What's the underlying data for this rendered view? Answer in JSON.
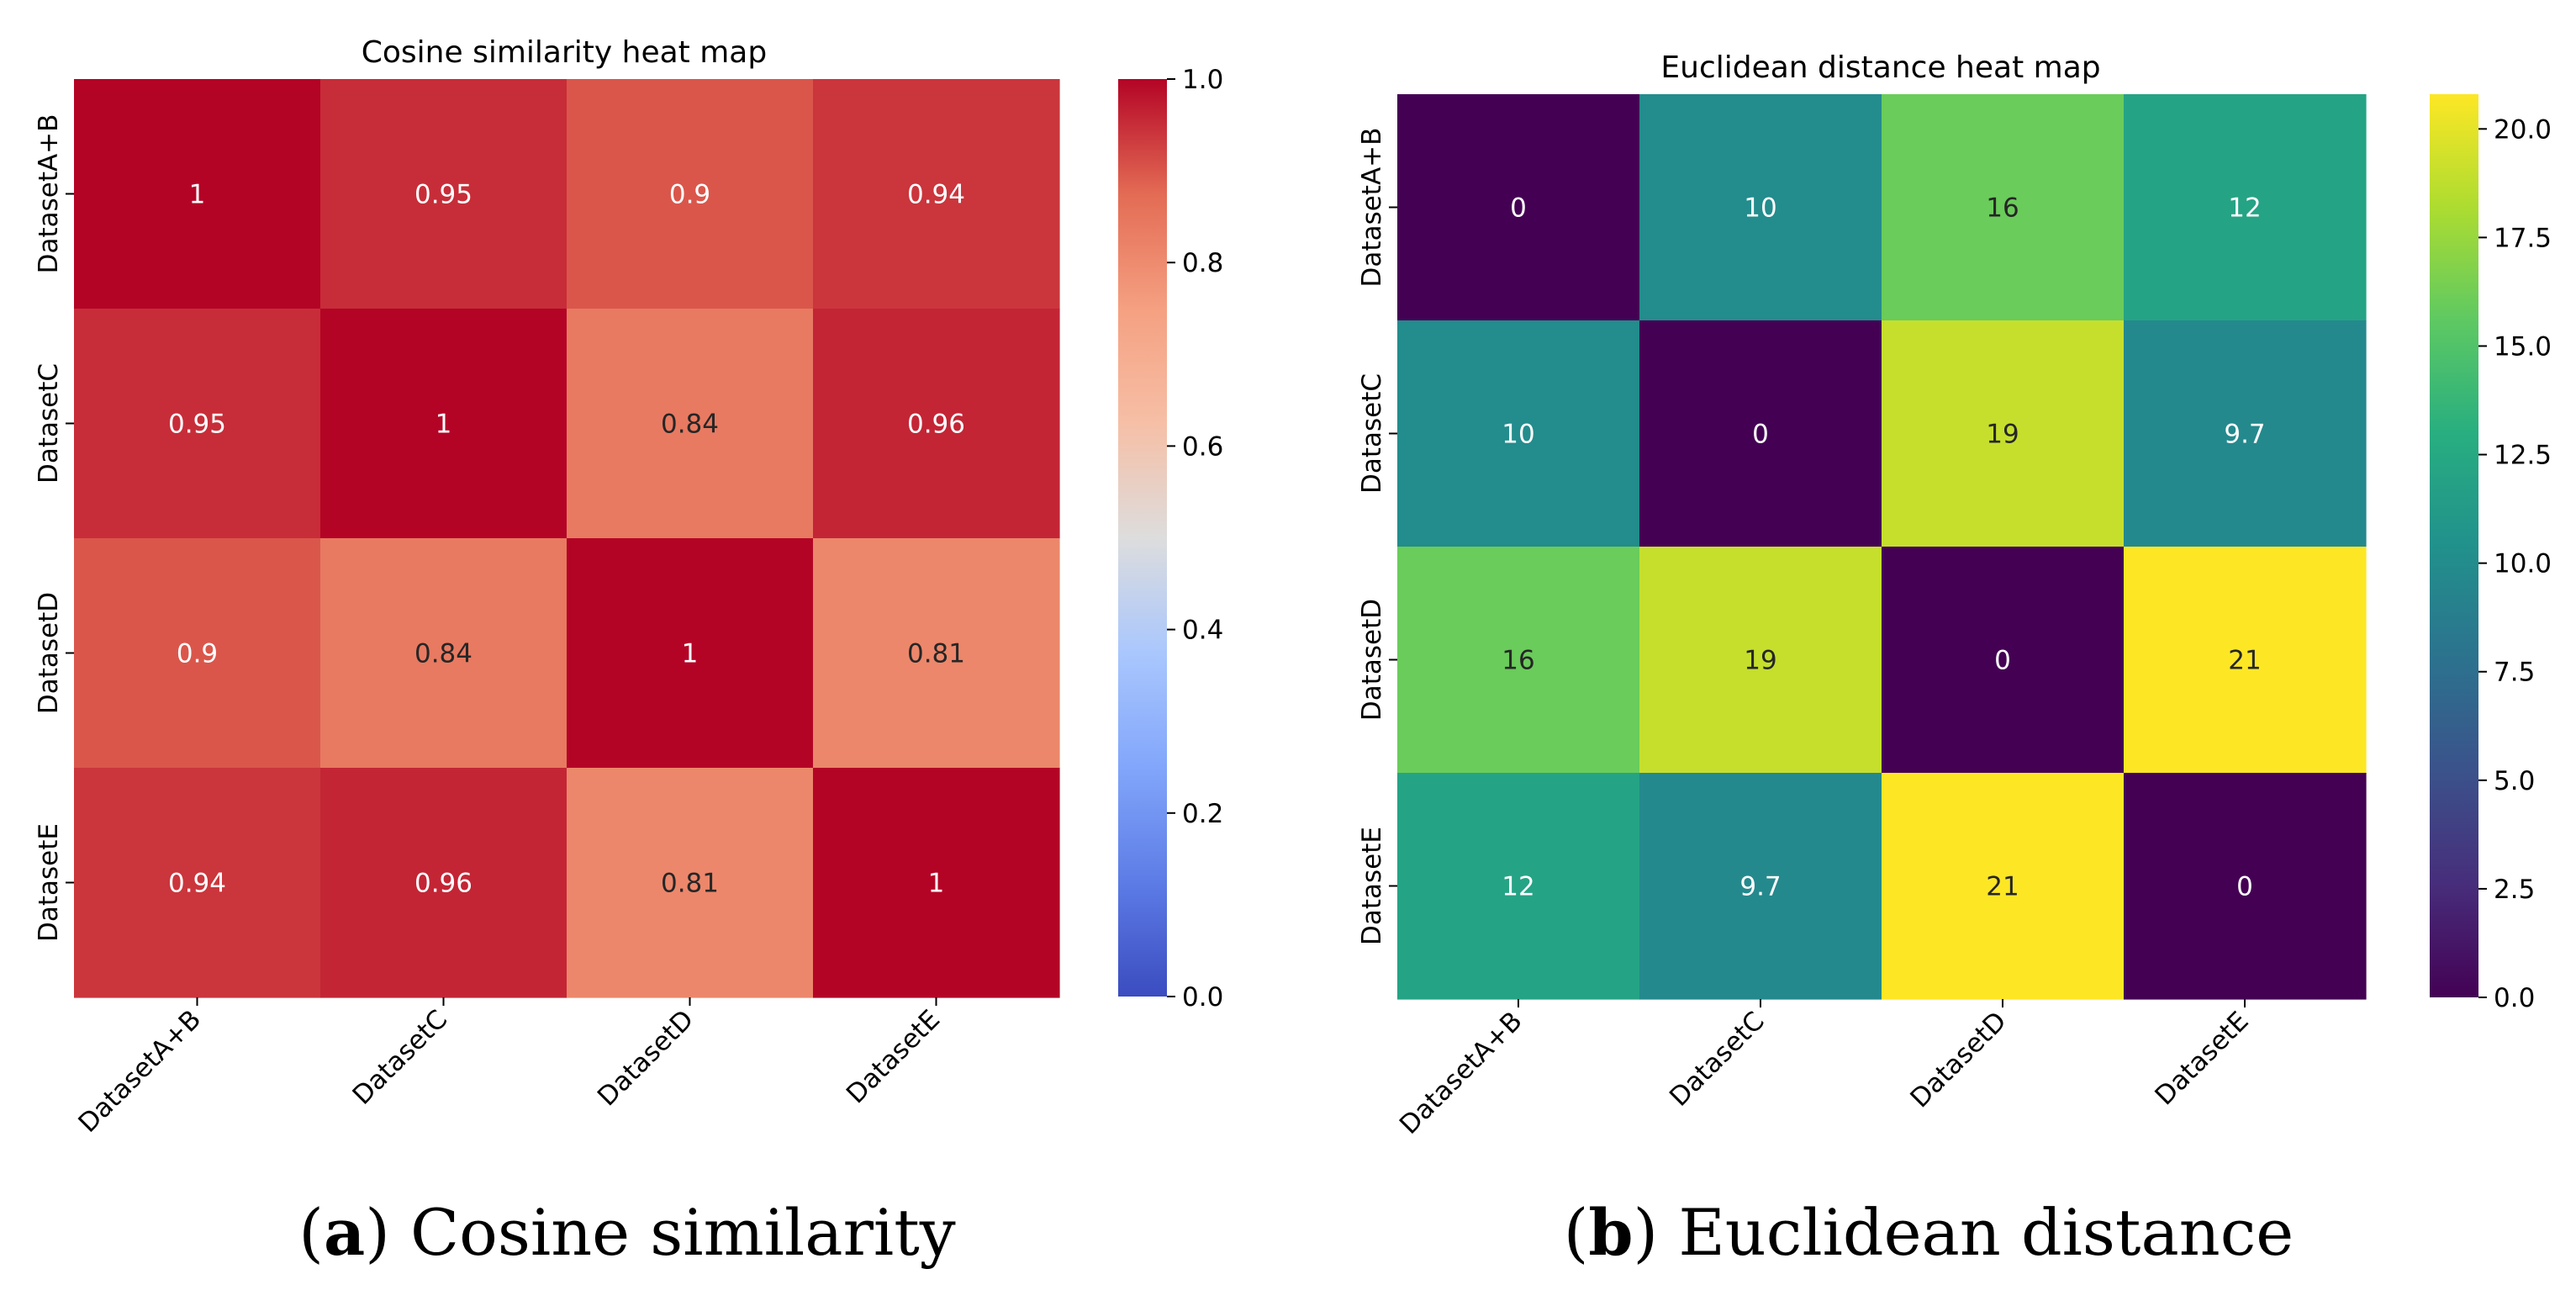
{
  "figure": {
    "captions": [
      {
        "label": "a",
        "text": "Cosine similarity"
      },
      {
        "label": "b",
        "text": "Euclidean distance"
      }
    ]
  },
  "chart_data": [
    {
      "type": "heatmap",
      "title": "Cosine similarity heat map",
      "colormap": "coolwarm",
      "x_categories": [
        "DatasetA+B",
        "DatasetC",
        "DatasetD",
        "DatasetE"
      ],
      "y_categories": [
        "DatasetA+B",
        "DatasetC",
        "DatasetD",
        "DatasetE"
      ],
      "values": [
        [
          1,
          0.95,
          0.9,
          0.94
        ],
        [
          0.95,
          1,
          0.84,
          0.96
        ],
        [
          0.9,
          0.84,
          1,
          0.81
        ],
        [
          0.94,
          0.96,
          0.81,
          1
        ]
      ],
      "cell_labels": [
        [
          "1",
          "0.95",
          "0.9",
          "0.94"
        ],
        [
          "0.95",
          "1",
          "0.84",
          "0.96"
        ],
        [
          "0.9",
          "0.84",
          "1",
          "0.81"
        ],
        [
          "0.94",
          "0.96",
          "0.81",
          "1"
        ]
      ],
      "colorbar": {
        "range": [
          0.0,
          1.0
        ],
        "ticks": [
          0.0,
          0.2,
          0.4,
          0.6,
          0.8,
          1.0
        ],
        "tick_labels": [
          "0.0",
          "0.2",
          "0.4",
          "0.6",
          "0.8",
          "1.0"
        ]
      }
    },
    {
      "type": "heatmap",
      "title": "Euclidean distance heat map",
      "colormap": "viridis",
      "x_categories": [
        "DatasetA+B",
        "DatasetC",
        "DatasetD",
        "DatasetE"
      ],
      "y_categories": [
        "DatasetA+B",
        "DatasetC",
        "DatasetD",
        "DatasetE"
      ],
      "values": [
        [
          0,
          10,
          16,
          12
        ],
        [
          10,
          0,
          19,
          9.7
        ],
        [
          16,
          19,
          0,
          21
        ],
        [
          12,
          9.7,
          21,
          0
        ]
      ],
      "cell_labels": [
        [
          "0",
          "10",
          "16",
          "12"
        ],
        [
          "10",
          "0",
          "19",
          "9.7"
        ],
        [
          "16",
          "19",
          "0",
          "21"
        ],
        [
          "12",
          "9.7",
          "21",
          "0"
        ]
      ],
      "colorbar": {
        "range": [
          0.0,
          20.8
        ],
        "ticks": [
          0.0,
          2.5,
          5.0,
          7.5,
          10.0,
          12.5,
          15.0,
          17.5,
          20.0
        ],
        "tick_labels": [
          "0.0",
          "2.5",
          "5.0",
          "7.5",
          "10.0",
          "12.5",
          "15.0",
          "17.5",
          "20.0"
        ]
      }
    }
  ]
}
